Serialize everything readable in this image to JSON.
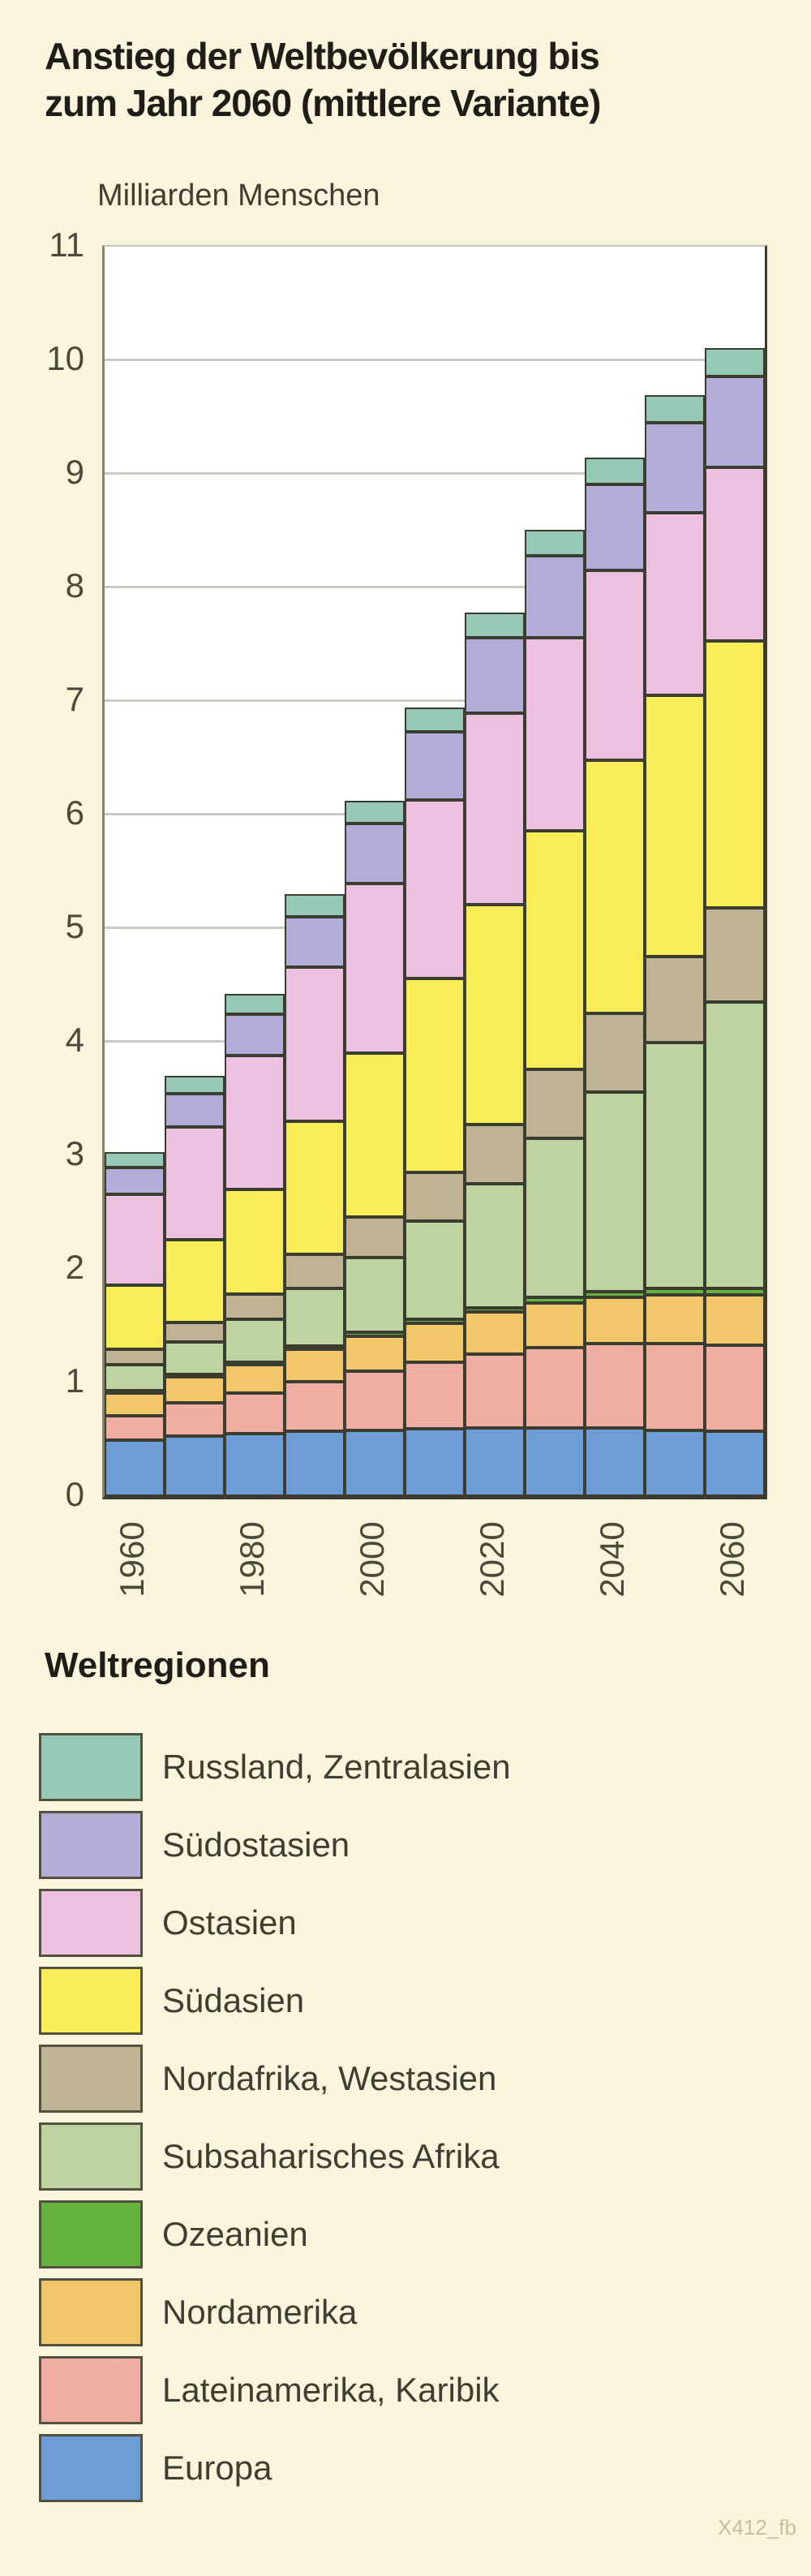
{
  "title": {
    "line1": "Anstieg der Weltbevölkerung bis",
    "line2": "zum Jahr 2060 (mittlere Variante)"
  },
  "chart_data": {
    "type": "bar",
    "stacked": true,
    "title": "Anstieg der Weltbevölkerung bis zum Jahr 2060 (mittlere Variante)",
    "ylabel": "Milliarden Menschen",
    "xlabel": "",
    "ylim": [
      0,
      11
    ],
    "yticks": [
      0,
      1,
      2,
      3,
      4,
      5,
      6,
      7,
      8,
      9,
      10,
      11
    ],
    "grid": "horizontal",
    "legend_position": "below",
    "categories": [
      1960,
      1970,
      1980,
      1990,
      2000,
      2010,
      2020,
      2030,
      2040,
      2050,
      2060
    ],
    "x_tick_labels": [
      "1960",
      "1980",
      "2000",
      "2020",
      "2040",
      "2060"
    ],
    "x_tick_indices": [
      0,
      2,
      4,
      6,
      8,
      10
    ],
    "series": [
      {
        "name": "Europa",
        "color": "#6e9cd6",
        "values": [
          0.49,
          0.53,
          0.55,
          0.57,
          0.58,
          0.59,
          0.6,
          0.6,
          0.6,
          0.58,
          0.57
        ]
      },
      {
        "name": "Lateinamerika, Karibik",
        "color": "#f0ada2",
        "values": [
          0.22,
          0.29,
          0.36,
          0.44,
          0.52,
          0.59,
          0.65,
          0.71,
          0.74,
          0.76,
          0.76
        ]
      },
      {
        "name": "Nordamerika",
        "color": "#f2c76a",
        "values": [
          0.2,
          0.23,
          0.25,
          0.28,
          0.31,
          0.34,
          0.37,
          0.39,
          0.41,
          0.43,
          0.44
        ]
      },
      {
        "name": "Ozeanien",
        "color": "#65b23e",
        "values": [
          0.02,
          0.02,
          0.02,
          0.03,
          0.03,
          0.04,
          0.04,
          0.05,
          0.05,
          0.06,
          0.06
        ]
      },
      {
        "name": "Subsaharisches Afrika",
        "color": "#bed4a0",
        "values": [
          0.23,
          0.29,
          0.38,
          0.51,
          0.66,
          0.86,
          1.09,
          1.4,
          1.76,
          2.16,
          2.52
        ]
      },
      {
        "name": "Nordafrika, Westasien",
        "color": "#bfb394",
        "values": [
          0.13,
          0.17,
          0.22,
          0.3,
          0.36,
          0.43,
          0.52,
          0.61,
          0.69,
          0.76,
          0.83
        ]
      },
      {
        "name": "Südasien",
        "color": "#f8ed56",
        "values": [
          0.57,
          0.73,
          0.92,
          1.17,
          1.44,
          1.71,
          1.94,
          2.1,
          2.23,
          2.3,
          2.35
        ]
      },
      {
        "name": "Ostasien",
        "color": "#eec0e0",
        "values": [
          0.8,
          0.99,
          1.18,
          1.36,
          1.49,
          1.57,
          1.68,
          1.7,
          1.67,
          1.61,
          1.53
        ]
      },
      {
        "name": "Südostasien",
        "color": "#b3acd8",
        "values": [
          0.23,
          0.29,
          0.36,
          0.44,
          0.53,
          0.6,
          0.67,
          0.72,
          0.76,
          0.79,
          0.8
        ]
      },
      {
        "name": "Russland, Zentralasien",
        "color": "#95c8b5",
        "values": [
          0.14,
          0.16,
          0.18,
          0.2,
          0.2,
          0.21,
          0.22,
          0.23,
          0.23,
          0.24,
          0.25
        ]
      }
    ],
    "totals": [
      3.03,
      3.7,
      4.42,
      5.3,
      6.12,
      6.94,
      7.78,
      8.51,
      9.14,
      9.69,
      10.11
    ]
  },
  "legend": {
    "title": "Weltregionen",
    "items": [
      {
        "label": "Russland, Zentralasien",
        "color": "#95c8b5"
      },
      {
        "label": "Südostasien",
        "color": "#b3acd8"
      },
      {
        "label": "Ostasien",
        "color": "#eec0e0"
      },
      {
        "label": "Südasien",
        "color": "#f8ed56"
      },
      {
        "label": "Nordafrika, Westasien",
        "color": "#bfb394"
      },
      {
        "label": "Subsaharisches Afrika",
        "color": "#bed4a0"
      },
      {
        "label": "Ozeanien",
        "color": "#65b23e"
      },
      {
        "label": "Nordamerika",
        "color": "#f2c76a"
      },
      {
        "label": "Lateinamerika, Karibik",
        "color": "#f0ada2"
      },
      {
        "label": "Europa",
        "color": "#6e9cd6"
      }
    ]
  },
  "watermark": "X412_fb",
  "colors": {
    "background": "#fbf4dc",
    "plot_background": "#ffffff",
    "gridline": "#cbcbc4",
    "segment_border": "#3a3d2f",
    "axis_text": "#4a4a3a",
    "title_text": "#1e1d17"
  }
}
